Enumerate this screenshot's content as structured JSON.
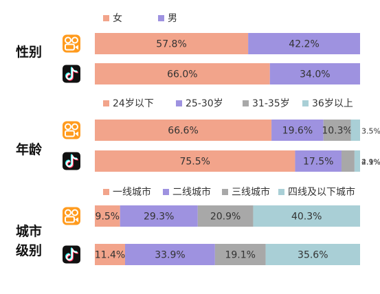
{
  "colors": {
    "female": "#f2a48b",
    "male": "#9e92e0",
    "age_24_below": "#f2a48b",
    "age_25_30": "#9e92e0",
    "age_31_35": "#a8a8a8",
    "age_36_above": "#a9cfd6",
    "tier1": "#f2a48b",
    "tier2": "#9e92e0",
    "tier3": "#a8a8a8",
    "tier4_below": "#a9cfd6",
    "kuaishou_icon": "#ff9b1e",
    "douyin_icon": "#111111"
  },
  "chart_data": [
    {
      "type": "bar",
      "stacked": true,
      "orientation": "horizontal",
      "group_label": "性别",
      "categories": [
        "快手",
        "抖音"
      ],
      "category_icons": [
        "kuaishou-icon",
        "douyin-icon"
      ],
      "unit": "%",
      "series": [
        {
          "name": "女",
          "values": [
            57.8,
            66.0
          ],
          "labels": [
            "57.8%",
            "66.0%"
          ]
        },
        {
          "name": "男",
          "values": [
            42.2,
            34.0
          ],
          "labels": [
            "42.2%",
            "34.0%"
          ]
        }
      ],
      "legend_position": "top"
    },
    {
      "type": "bar",
      "stacked": true,
      "orientation": "horizontal",
      "group_label": "年龄",
      "categories": [
        "快手",
        "抖音"
      ],
      "category_icons": [
        "kuaishou-icon",
        "douyin-icon"
      ],
      "unit": "%",
      "series": [
        {
          "name": "24岁以下",
          "values": [
            66.6,
            75.5
          ],
          "labels": [
            "66.6%",
            "75.5%"
          ]
        },
        {
          "name": "25-30岁",
          "values": [
            19.6,
            17.5
          ],
          "labels": [
            "19.6%",
            "17.5%"
          ]
        },
        {
          "name": "31-35岁",
          "values": [
            10.3,
            4.9
          ],
          "labels": [
            "10.3%",
            "4.9%"
          ]
        },
        {
          "name": "36岁以上",
          "values": [
            3.5,
            2.1
          ],
          "labels": [
            "3.5%",
            "2.1%"
          ]
        }
      ],
      "legend_position": "top"
    },
    {
      "type": "bar",
      "stacked": true,
      "orientation": "horizontal",
      "group_label": "城市级别",
      "categories": [
        "快手",
        "抖音"
      ],
      "category_icons": [
        "kuaishou-icon",
        "douyin-icon"
      ],
      "unit": "%",
      "series": [
        {
          "name": "一线城市",
          "values": [
            9.5,
            11.4
          ],
          "labels": [
            "9.5%",
            "11.4%"
          ]
        },
        {
          "name": "二线城市",
          "values": [
            29.3,
            33.9
          ],
          "labels": [
            "29.3%",
            "33.9%"
          ]
        },
        {
          "name": "三线城市",
          "values": [
            20.9,
            19.1
          ],
          "labels": [
            "20.9%",
            "19.1%"
          ]
        },
        {
          "name": "四线及以下城市",
          "values": [
            40.3,
            35.6
          ],
          "labels": [
            "40.3%",
            "35.6%"
          ]
        }
      ],
      "legend_position": "top"
    }
  ]
}
